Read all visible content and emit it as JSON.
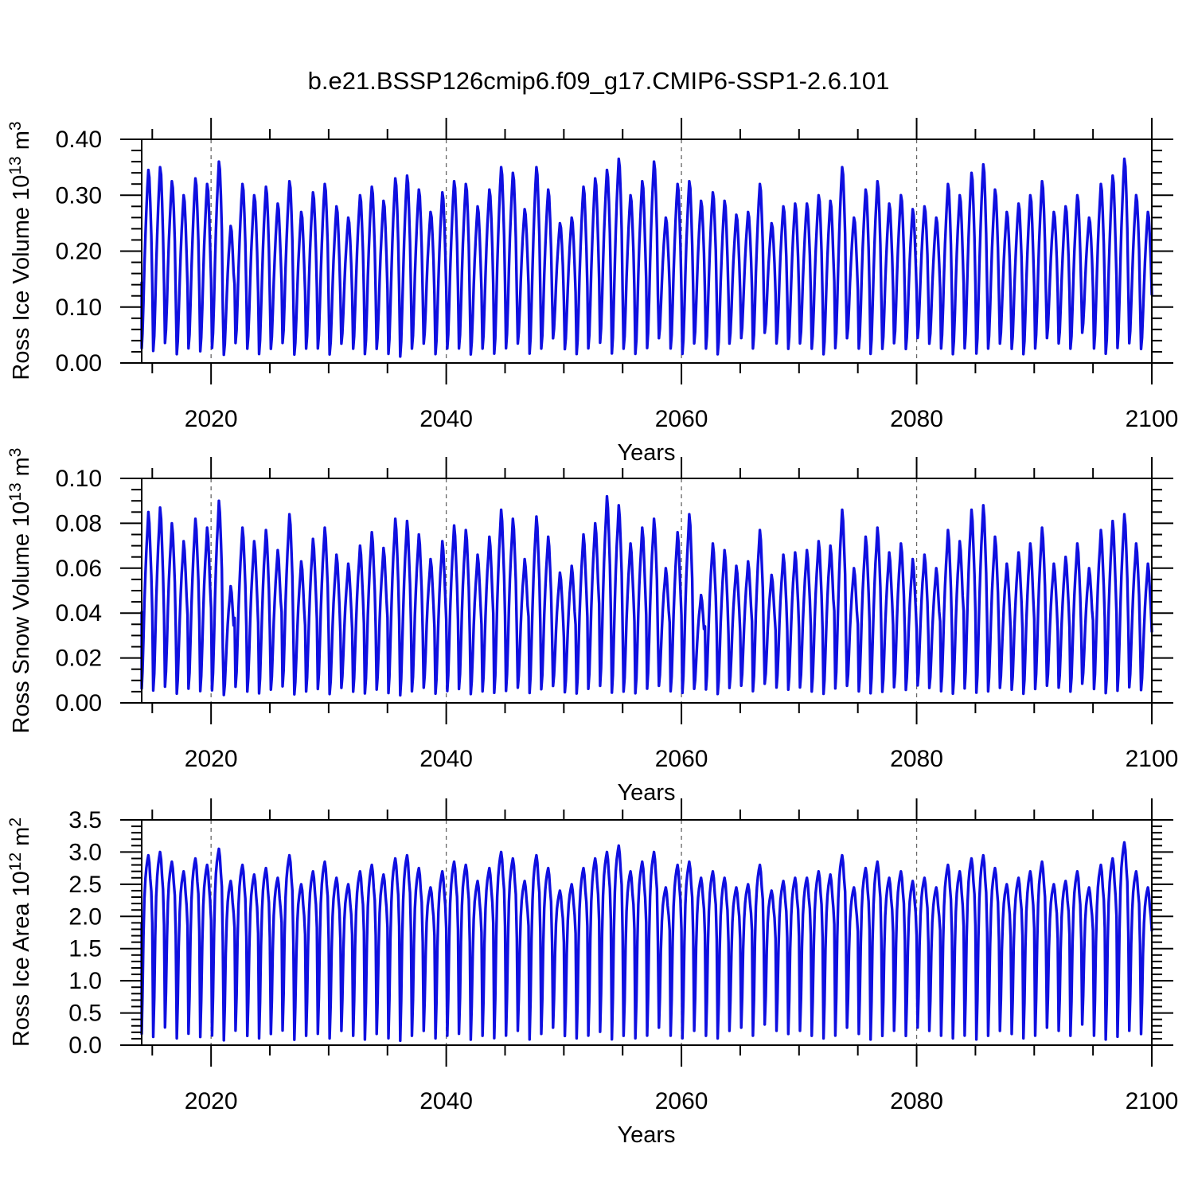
{
  "title": "b.e21.BSSP126cmip6.f09_g17.CMIP6-SSP1-2.6.101",
  "colors": {
    "line": "#0f0fe0",
    "axis": "#000000",
    "grid": "#666666",
    "background": "#ffffff"
  },
  "chart_data": [
    {
      "type": "line",
      "ylabel": "Ross Ice Volume 10^13 m^3",
      "ylabel_parts": {
        "pre": "Ross Ice Volume 10",
        "sup1": "13",
        "mid": "m",
        "sup2": "3"
      },
      "xlabel": "Years",
      "xlim": [
        2014.1,
        2100
      ],
      "ylim": [
        0,
        0.4
      ],
      "x_ticks": [
        2020,
        2040,
        2060,
        2080,
        2100
      ],
      "x_tick_labels": [
        "2020",
        "2040",
        "2060",
        "2080",
        "2100"
      ],
      "x_minor_step": 5,
      "y_ticks": [
        0,
        0.1,
        0.2,
        0.3,
        0.4
      ],
      "y_tick_labels": [
        "0.00",
        "0.10",
        "0.20",
        "0.30",
        "0.40"
      ],
      "y_minor_step": 0.02,
      "grid": "vertical-dashed-at-major-x",
      "series": [
        {
          "name": "Ross Ice Volume",
          "units": "10^13 m^3",
          "color": "#0f0fe0",
          "start_year": 2014,
          "cadence": "monthly",
          "monthly_shape": [
            0.38,
            0.02,
            0.1,
            0.27,
            0.47,
            0.64,
            0.78,
            0.9,
            1.0,
            0.96,
            0.82,
            0.64
          ],
          "annual_max": [
            0.345,
            0.35,
            0.325,
            0.3,
            0.33,
            0.32,
            0.36,
            0.245,
            0.32,
            0.3,
            0.315,
            0.285,
            0.325,
            0.27,
            0.305,
            0.32,
            0.28,
            0.26,
            0.3,
            0.315,
            0.29,
            0.33,
            0.335,
            0.31,
            0.27,
            0.305,
            0.325,
            0.32,
            0.28,
            0.31,
            0.35,
            0.34,
            0.275,
            0.35,
            0.31,
            0.25,
            0.26,
            0.315,
            0.33,
            0.345,
            0.365,
            0.3,
            0.325,
            0.36,
            0.26,
            0.32,
            0.325,
            0.29,
            0.305,
            0.29,
            0.265,
            0.27,
            0.32,
            0.25,
            0.28,
            0.285,
            0.285,
            0.3,
            0.29,
            0.35,
            0.26,
            0.31,
            0.325,
            0.285,
            0.3,
            0.275,
            0.28,
            0.26,
            0.32,
            0.3,
            0.34,
            0.355,
            0.31,
            0.27,
            0.285,
            0.3,
            0.325,
            0.27,
            0.28,
            0.3,
            0.26,
            0.32,
            0.335,
            0.365,
            0.3,
            0.27,
            0.29
          ],
          "annual_min": [
            0.02,
            0.015,
            0.03,
            0.01,
            0.02,
            0.015,
            0.02,
            0.01,
            0.03,
            0.02,
            0.01,
            0.02,
            0.03,
            0.01,
            0.02,
            0.02,
            0.01,
            0.03,
            0.02,
            0.01,
            0.02,
            0.01,
            0.005,
            0.02,
            0.03,
            0.01,
            0.02,
            0.02,
            0.01,
            0.02,
            0.01,
            0.02,
            0.03,
            0.01,
            0.02,
            0.04,
            0.02,
            0.01,
            0.02,
            0.03,
            0.01,
            0.02,
            0.01,
            0.02,
            0.04,
            0.02,
            0.01,
            0.03,
            0.02,
            0.01,
            0.03,
            0.04,
            0.02,
            0.05,
            0.03,
            0.02,
            0.03,
            0.02,
            0.01,
            0.02,
            0.04,
            0.02,
            0.01,
            0.02,
            0.03,
            0.02,
            0.04,
            0.03,
            0.02,
            0.01,
            0.02,
            0.01,
            0.02,
            0.03,
            0.02,
            0.01,
            0.02,
            0.04,
            0.03,
            0.02,
            0.05,
            0.02,
            0.01,
            0.02,
            0.03,
            0.02,
            0.02
          ]
        }
      ]
    },
    {
      "type": "line",
      "ylabel": "Ross Snow Volume 10^13 m^3",
      "ylabel_parts": {
        "pre": "Ross Snow Volume 10",
        "sup1": "13",
        "mid": "m",
        "sup2": "3"
      },
      "xlabel": "Years",
      "xlim": [
        2014.1,
        2100
      ],
      "ylim": [
        0,
        0.1
      ],
      "x_ticks": [
        2020,
        2040,
        2060,
        2080,
        2100
      ],
      "x_tick_labels": [
        "2020",
        "2040",
        "2060",
        "2080",
        "2100"
      ],
      "x_minor_step": 5,
      "y_ticks": [
        0,
        0.02,
        0.04,
        0.06,
        0.08,
        0.1
      ],
      "y_tick_labels": [
        "0.00",
        "0.02",
        "0.04",
        "0.06",
        "0.08",
        "0.10"
      ],
      "y_minor_step": 0.005,
      "grid": "vertical-dashed-at-major-x",
      "series": [
        {
          "name": "Ross Snow Volume",
          "units": "10^13 m^3",
          "color": "#0f0fe0",
          "start_year": 2014,
          "cadence": "monthly",
          "monthly_shape": [
            0.45,
            0.03,
            0.12,
            0.3,
            0.5,
            0.66,
            0.79,
            0.89,
            1.0,
            0.94,
            0.8,
            0.65
          ],
          "annual_max": [
            0.085,
            0.087,
            0.08,
            0.072,
            0.082,
            0.078,
            0.09,
            0.052,
            0.078,
            0.072,
            0.077,
            0.068,
            0.084,
            0.063,
            0.073,
            0.078,
            0.066,
            0.062,
            0.07,
            0.076,
            0.069,
            0.082,
            0.081,
            0.075,
            0.064,
            0.072,
            0.079,
            0.077,
            0.066,
            0.074,
            0.086,
            0.082,
            0.064,
            0.083,
            0.074,
            0.058,
            0.061,
            0.075,
            0.08,
            0.092,
            0.088,
            0.071,
            0.078,
            0.082,
            0.06,
            0.076,
            0.084,
            0.048,
            0.071,
            0.068,
            0.061,
            0.063,
            0.077,
            0.057,
            0.066,
            0.067,
            0.068,
            0.072,
            0.07,
            0.086,
            0.06,
            0.074,
            0.078,
            0.067,
            0.071,
            0.064,
            0.066,
            0.06,
            0.077,
            0.072,
            0.086,
            0.088,
            0.074,
            0.062,
            0.067,
            0.071,
            0.078,
            0.062,
            0.065,
            0.071,
            0.06,
            0.077,
            0.081,
            0.084,
            0.071,
            0.062,
            0.067
          ],
          "annual_min": [
            0.004,
            0.003,
            0.005,
            0.002,
            0.004,
            0.003,
            0.003,
            0.002,
            0.005,
            0.003,
            0.002,
            0.004,
            0.005,
            0.002,
            0.003,
            0.004,
            0.002,
            0.005,
            0.003,
            0.002,
            0.004,
            0.002,
            0.001,
            0.003,
            0.005,
            0.002,
            0.003,
            0.004,
            0.002,
            0.003,
            0.002,
            0.003,
            0.005,
            0.002,
            0.004,
            0.006,
            0.003,
            0.002,
            0.004,
            0.005,
            0.002,
            0.003,
            0.002,
            0.004,
            0.006,
            0.003,
            0.002,
            0.005,
            0.004,
            0.002,
            0.005,
            0.006,
            0.003,
            0.007,
            0.005,
            0.004,
            0.005,
            0.003,
            0.002,
            0.004,
            0.006,
            0.003,
            0.002,
            0.003,
            0.005,
            0.004,
            0.006,
            0.005,
            0.003,
            0.002,
            0.004,
            0.002,
            0.003,
            0.005,
            0.004,
            0.002,
            0.004,
            0.006,
            0.005,
            0.003,
            0.007,
            0.004,
            0.002,
            0.003,
            0.005,
            0.004,
            0.003
          ]
        }
      ]
    },
    {
      "type": "line",
      "ylabel": "Ross Ice Area 10^12 m^2",
      "ylabel_parts": {
        "pre": "Ross Ice Area 10",
        "sup1": "12",
        "mid": "m",
        "sup2": "2"
      },
      "xlabel": "Years",
      "xlim": [
        2014.1,
        2100
      ],
      "ylim": [
        0,
        3.5
      ],
      "x_ticks": [
        2020,
        2040,
        2060,
        2080,
        2100
      ],
      "x_tick_labels": [
        "2020",
        "2040",
        "2060",
        "2080",
        "2100"
      ],
      "x_minor_step": 5,
      "y_ticks": [
        0,
        0.5,
        1.0,
        1.5,
        2.0,
        2.5,
        3.0,
        3.5
      ],
      "y_tick_labels": [
        "0.0",
        "0.5",
        "1.0",
        "1.5",
        "2.0",
        "2.5",
        "3.0",
        "3.5"
      ],
      "y_minor_step": 0.1,
      "grid": "vertical-dashed-at-major-x",
      "series": [
        {
          "name": "Ross Ice Area",
          "units": "10^12 m^2",
          "color": "#0f0fe0",
          "start_year": 2014,
          "cadence": "monthly",
          "monthly_shape": [
            0.62,
            0.01,
            0.22,
            0.55,
            0.76,
            0.87,
            0.93,
            0.97,
            1.0,
            0.96,
            0.87,
            0.8
          ],
          "annual_max": [
            2.95,
            3.0,
            2.85,
            2.7,
            2.9,
            2.8,
            3.05,
            2.55,
            2.8,
            2.65,
            2.75,
            2.6,
            2.95,
            2.5,
            2.7,
            2.85,
            2.6,
            2.5,
            2.7,
            2.8,
            2.65,
            2.9,
            2.95,
            2.75,
            2.45,
            2.7,
            2.85,
            2.8,
            2.55,
            2.75,
            3.0,
            2.9,
            2.55,
            2.95,
            2.75,
            2.4,
            2.5,
            2.75,
            2.9,
            3.0,
            3.1,
            2.7,
            2.85,
            3.0,
            2.45,
            2.8,
            2.85,
            2.6,
            2.7,
            2.6,
            2.45,
            2.5,
            2.8,
            2.4,
            2.55,
            2.6,
            2.6,
            2.7,
            2.65,
            2.95,
            2.45,
            2.75,
            2.85,
            2.6,
            2.7,
            2.55,
            2.6,
            2.45,
            2.8,
            2.7,
            2.9,
            2.95,
            2.75,
            2.5,
            2.6,
            2.7,
            2.85,
            2.5,
            2.55,
            2.7,
            2.45,
            2.8,
            2.9,
            3.15,
            2.7,
            2.45,
            2.8
          ],
          "annual_min": [
            0.15,
            0.1,
            0.25,
            0.08,
            0.15,
            0.1,
            0.12,
            0.05,
            0.2,
            0.12,
            0.08,
            0.15,
            0.2,
            0.06,
            0.12,
            0.15,
            0.08,
            0.2,
            0.12,
            0.06,
            0.15,
            0.08,
            0.04,
            0.12,
            0.2,
            0.08,
            0.12,
            0.15,
            0.06,
            0.12,
            0.08,
            0.12,
            0.2,
            0.06,
            0.15,
            0.25,
            0.12,
            0.08,
            0.12,
            0.18,
            0.06,
            0.12,
            0.08,
            0.12,
            0.25,
            0.12,
            0.08,
            0.2,
            0.12,
            0.08,
            0.2,
            0.25,
            0.12,
            0.3,
            0.2,
            0.15,
            0.2,
            0.12,
            0.08,
            0.12,
            0.25,
            0.15,
            0.06,
            0.12,
            0.2,
            0.12,
            0.25,
            0.2,
            0.12,
            0.08,
            0.12,
            0.06,
            0.12,
            0.2,
            0.15,
            0.08,
            0.12,
            0.25,
            0.2,
            0.12,
            0.3,
            0.12,
            0.06,
            0.1,
            0.2,
            0.15,
            0.12
          ]
        }
      ]
    }
  ]
}
